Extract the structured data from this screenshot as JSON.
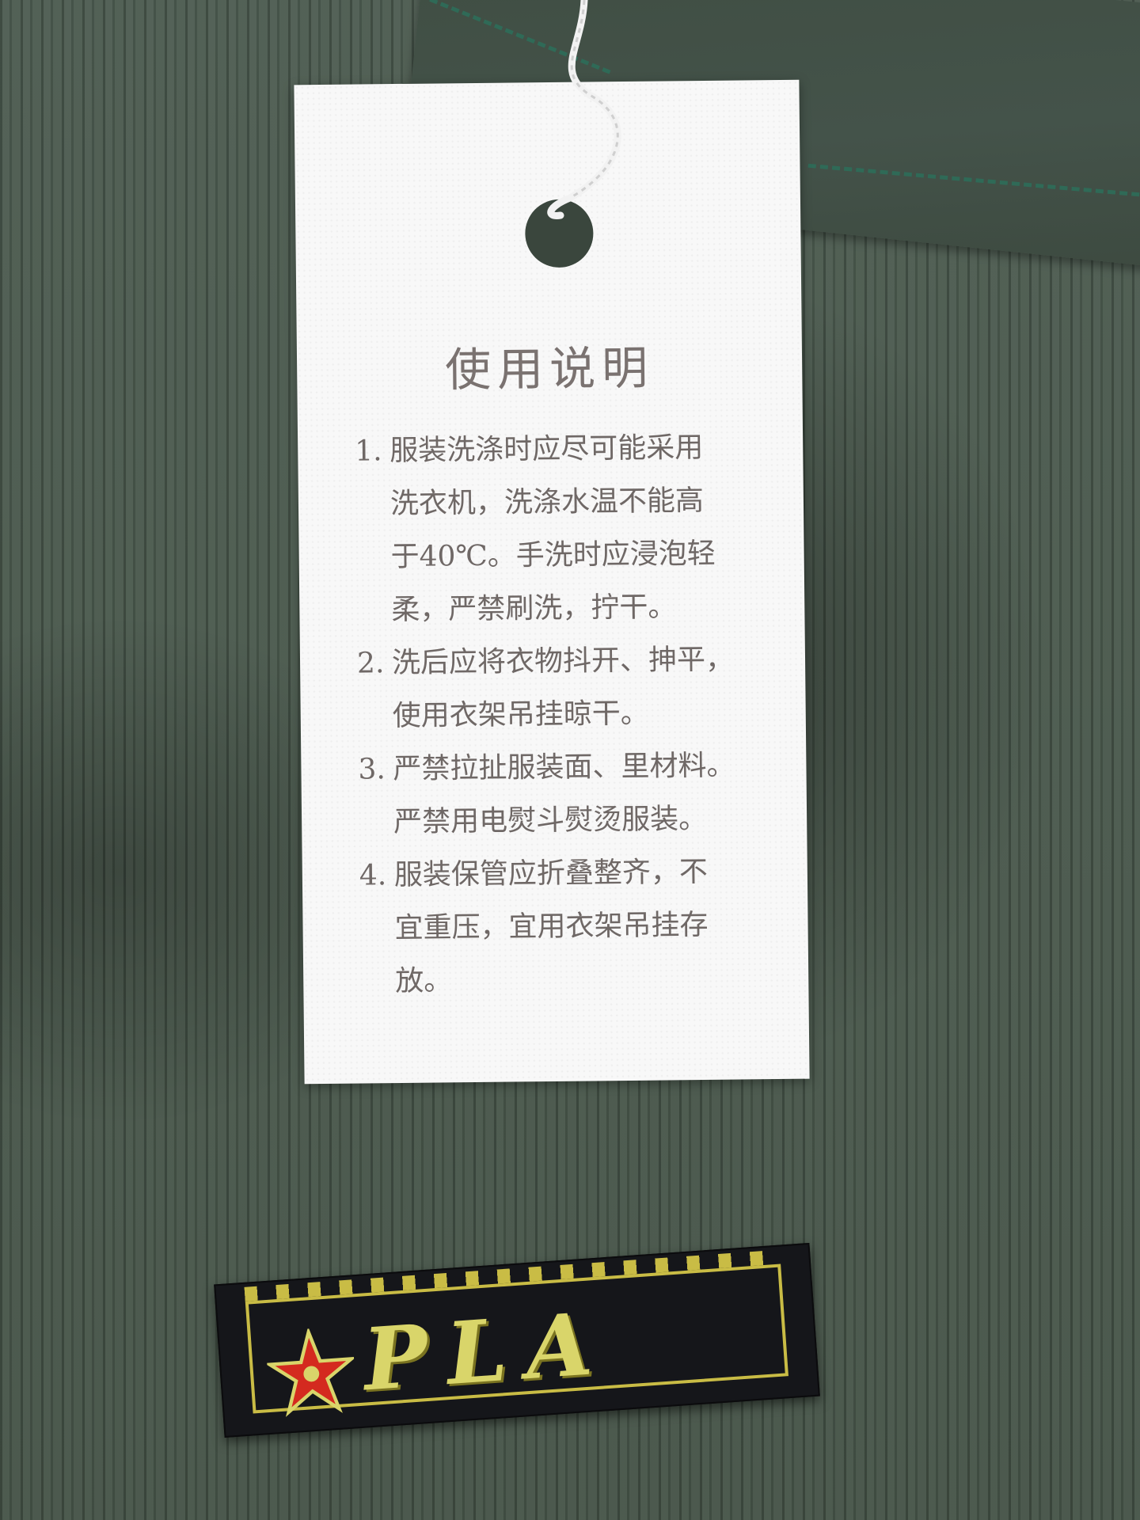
{
  "hang_tag": {
    "title": "使用说明",
    "instructions": [
      {
        "num": "1.",
        "lines": [
          "服装洗涤时应尽可能采用",
          "洗衣机，洗涤水温不能高",
          "于40℃。手洗时应浸泡轻",
          "柔，严禁刷洗，拧干。"
        ]
      },
      {
        "num": "2.",
        "lines": [
          "洗后应将衣物抖开、抻平，",
          "使用衣架吊挂晾干。"
        ]
      },
      {
        "num": "3.",
        "lines": [
          "严禁拉扯服装面、里材料。",
          "严禁用电熨斗熨烫服装。"
        ]
      },
      {
        "num": "4.",
        "lines": [
          "服装保管应折叠整齐，不",
          "宜重压，宜用衣架吊挂存",
          "放。"
        ]
      }
    ]
  },
  "woven_label": {
    "text": "PLA",
    "star_icon": "red-star-icon",
    "colors": {
      "background": "#15161a",
      "embroidery": "#d9d56a",
      "star": "#d42a1f"
    }
  },
  "garment": {
    "color": "#4a5a4e",
    "seam_color": "#2f6a57"
  }
}
